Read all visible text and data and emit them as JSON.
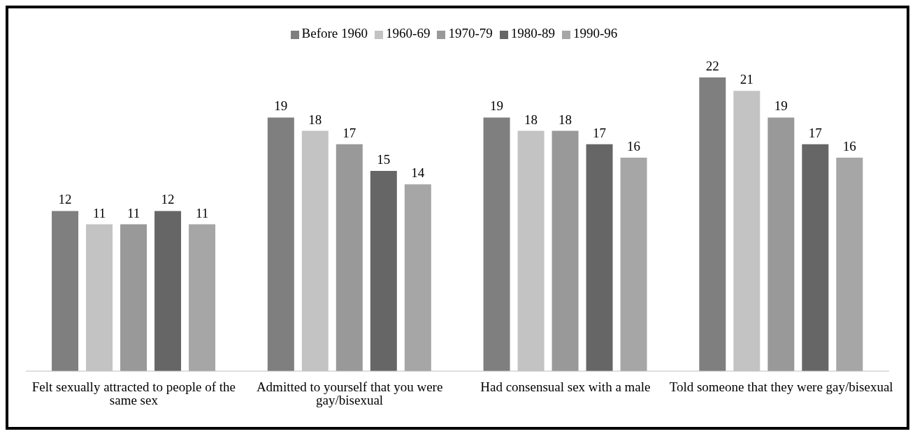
{
  "chart_data": {
    "type": "bar",
    "categories": [
      "Felt sexually attracted to people of the same sex",
      "Admitted to yourself that you were gay/bisexual",
      "Had consensual sex with a male",
      "Told someone that they were gay/bisexual"
    ],
    "series": [
      {
        "name": "Before 1960",
        "color": "#7f7f7f",
        "values": [
          12,
          19,
          19,
          22
        ]
      },
      {
        "name": "1960-69",
        "color": "#c3c3c3",
        "values": [
          11,
          18,
          18,
          21
        ]
      },
      {
        "name": "1970-79",
        "color": "#999999",
        "values": [
          11,
          17,
          18,
          19
        ]
      },
      {
        "name": "1980-89",
        "color": "#666666",
        "values": [
          12,
          15,
          17,
          17
        ]
      },
      {
        "name": "1990-96",
        "color": "#a6a6a6",
        "values": [
          11,
          14,
          16,
          16
        ]
      }
    ],
    "data_labels": true,
    "legend": "top",
    "grid": false,
    "tick_labels": "x"
  }
}
